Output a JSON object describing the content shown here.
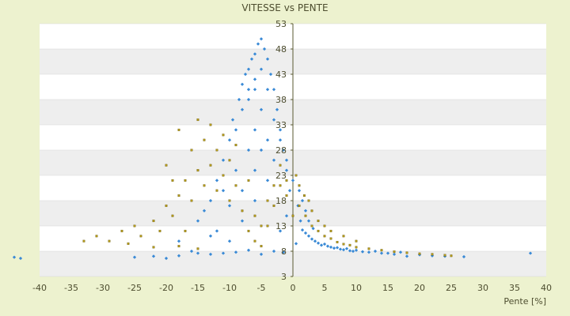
{
  "chart_data": {
    "type": "scatter",
    "title": "VITESSE vs PENTE",
    "xlabel": "Pente [%]",
    "ylabel": "",
    "xlim": [
      -40,
      40
    ],
    "ylim": [
      3,
      53
    ],
    "x_ticks": [
      -40,
      -35,
      -30,
      -25,
      -20,
      -15,
      -10,
      -5,
      0,
      5,
      10,
      15,
      20,
      25,
      30,
      35,
      40
    ],
    "y_ticks": [
      3,
      8,
      13,
      18,
      23,
      28,
      33,
      38,
      43,
      48,
      53
    ],
    "grid": true,
    "legend": "none",
    "colors": {
      "series_blue": "#3a8ad6",
      "series_olive": "#b59b1a",
      "plot_band": "#eeeeee",
      "plot_bg": "#ffffff",
      "axis": "#5a5a32",
      "background": "#edf2cf"
    },
    "series": [
      {
        "points": [
          [
            -44,
            6.8
          ],
          [
            -43,
            6.6
          ],
          [
            -25,
            6.8
          ],
          [
            -22,
            7.0
          ],
          [
            -20,
            6.6
          ],
          [
            -18,
            7.1
          ],
          [
            -15,
            7.6
          ],
          [
            -13,
            7.4
          ],
          [
            -11,
            7.6
          ],
          [
            -9,
            7.8
          ],
          [
            -7,
            8.2
          ],
          [
            -5,
            7.4
          ],
          [
            -3,
            8.0
          ],
          [
            -1.5,
            7.8
          ],
          [
            0.5,
            9.5
          ],
          [
            1.2,
            14.0
          ],
          [
            1.5,
            12.2
          ],
          [
            2,
            11.6
          ],
          [
            2.5,
            11.0
          ],
          [
            3,
            10.4
          ],
          [
            3.5,
            10.0
          ],
          [
            4,
            9.6
          ],
          [
            4.5,
            9.2
          ],
          [
            5,
            9.4
          ],
          [
            5.5,
            9.0
          ],
          [
            6,
            8.8
          ],
          [
            6.5,
            8.6
          ],
          [
            7,
            8.7
          ],
          [
            7.5,
            8.4
          ],
          [
            8,
            8.3
          ],
          [
            8.5,
            8.5
          ],
          [
            9,
            8.1
          ],
          [
            9.5,
            8.0
          ],
          [
            10,
            8.2
          ],
          [
            11,
            7.9
          ],
          [
            12,
            7.8
          ],
          [
            13,
            8.0
          ],
          [
            14,
            7.6
          ],
          [
            15,
            7.6
          ],
          [
            16,
            7.4
          ],
          [
            17,
            7.8
          ],
          [
            18,
            7.0
          ],
          [
            20,
            7.3
          ],
          [
            22,
            7.1
          ],
          [
            24,
            7.0
          ],
          [
            27,
            6.9
          ],
          [
            37.5,
            7.6
          ],
          [
            -2,
            12
          ],
          [
            -1,
            15
          ],
          [
            0.8,
            17
          ],
          [
            1,
            20
          ],
          [
            1.5,
            18
          ],
          [
            2,
            16
          ],
          [
            2.5,
            14
          ],
          [
            3.2,
            12.5
          ],
          [
            -16,
            8
          ],
          [
            -18,
            10
          ],
          [
            -15,
            14
          ],
          [
            -13,
            18
          ],
          [
            -12,
            22
          ],
          [
            -11,
            26
          ],
          [
            -10,
            30
          ],
          [
            -9.5,
            34
          ],
          [
            -8.5,
            38
          ],
          [
            -8,
            41
          ],
          [
            -7.5,
            43
          ],
          [
            -7,
            44
          ],
          [
            -6.5,
            46
          ],
          [
            -6,
            47
          ],
          [
            -5.5,
            49
          ],
          [
            -5,
            50
          ],
          [
            -4.5,
            48
          ],
          [
            -4,
            46
          ],
          [
            -3.5,
            43
          ],
          [
            -3,
            40
          ],
          [
            -2.5,
            36
          ],
          [
            -2,
            32
          ],
          [
            -1.5,
            28
          ],
          [
            -1,
            24
          ],
          [
            -0.5,
            20
          ],
          [
            -14,
            16
          ],
          [
            -12,
            12
          ],
          [
            -10,
            10
          ],
          [
            -8,
            14
          ],
          [
            -6,
            18
          ],
          [
            -4,
            22
          ],
          [
            -3,
            26
          ],
          [
            -9,
            24
          ],
          [
            -7,
            28
          ],
          [
            -6,
            32
          ],
          [
            -5,
            36
          ],
          [
            -4,
            40
          ],
          [
            -8,
            36
          ],
          [
            -7,
            38
          ],
          [
            -6,
            40
          ],
          [
            -9,
            32
          ],
          [
            -11,
            20
          ],
          [
            -13,
            11
          ],
          [
            -10,
            17
          ],
          [
            -8,
            20
          ],
          [
            -6,
            24
          ],
          [
            -5,
            28
          ],
          [
            -4,
            30
          ],
          [
            -5,
            44
          ],
          [
            -6,
            42
          ],
          [
            -7,
            40
          ],
          [
            -3,
            34
          ],
          [
            -2,
            30
          ],
          [
            -1,
            26
          ],
          [
            0,
            22
          ]
        ]
      },
      {
        "points": [
          [
            -33,
            10
          ],
          [
            -31,
            11
          ],
          [
            -29,
            10
          ],
          [
            -27,
            12
          ],
          [
            -25,
            13
          ],
          [
            -24,
            11
          ],
          [
            -22,
            14
          ],
          [
            -21,
            12
          ],
          [
            -20,
            17
          ],
          [
            -20,
            25
          ],
          [
            -19,
            15
          ],
          [
            -18,
            19
          ],
          [
            -17,
            22
          ],
          [
            -16,
            18
          ],
          [
            -16,
            28
          ],
          [
            -15,
            24
          ],
          [
            -14,
            21
          ],
          [
            -14,
            30
          ],
          [
            -13,
            25
          ],
          [
            -12,
            20
          ],
          [
            -12,
            28
          ],
          [
            -11,
            23
          ],
          [
            -10,
            18
          ],
          [
            -10,
            26
          ],
          [
            -9,
            21
          ],
          [
            -8,
            16
          ],
          [
            -7,
            12
          ],
          [
            -6,
            10
          ],
          [
            -5,
            9
          ],
          [
            -4,
            13
          ],
          [
            -3,
            17
          ],
          [
            -2,
            21
          ],
          [
            -1,
            19
          ],
          [
            0,
            15
          ],
          [
            1,
            17
          ],
          [
            2,
            15
          ],
          [
            3,
            13
          ],
          [
            4,
            12
          ],
          [
            5,
            11
          ],
          [
            6,
            10.5
          ],
          [
            7,
            9.8
          ],
          [
            8,
            9.4
          ],
          [
            9,
            9.2
          ],
          [
            10,
            8.8
          ],
          [
            12,
            8.5
          ],
          [
            14,
            8.2
          ],
          [
            16,
            7.9
          ],
          [
            18,
            7.7
          ],
          [
            20,
            7.5
          ],
          [
            22,
            7.4
          ],
          [
            24,
            7.2
          ],
          [
            25,
            7.1
          ],
          [
            -18,
            9
          ],
          [
            -15,
            8.5
          ],
          [
            -22,
            8.8
          ],
          [
            -26,
            9.5
          ],
          [
            -17,
            12
          ],
          [
            -19,
            22
          ],
          [
            -18,
            32
          ],
          [
            -15,
            34
          ],
          [
            -13,
            33
          ],
          [
            -11,
            31
          ],
          [
            -9,
            29
          ],
          [
            -7,
            22
          ],
          [
            -6,
            15
          ],
          [
            -5,
            13
          ],
          [
            -4,
            18
          ],
          [
            -3,
            21
          ],
          [
            -2,
            25
          ],
          [
            -1,
            22
          ],
          [
            0.5,
            23
          ],
          [
            1,
            21
          ],
          [
            1.8,
            19
          ],
          [
            2.5,
            18
          ],
          [
            3,
            16
          ],
          [
            4,
            14
          ],
          [
            5,
            13
          ],
          [
            6,
            12
          ],
          [
            8,
            11
          ],
          [
            10,
            10
          ]
        ]
      }
    ]
  }
}
